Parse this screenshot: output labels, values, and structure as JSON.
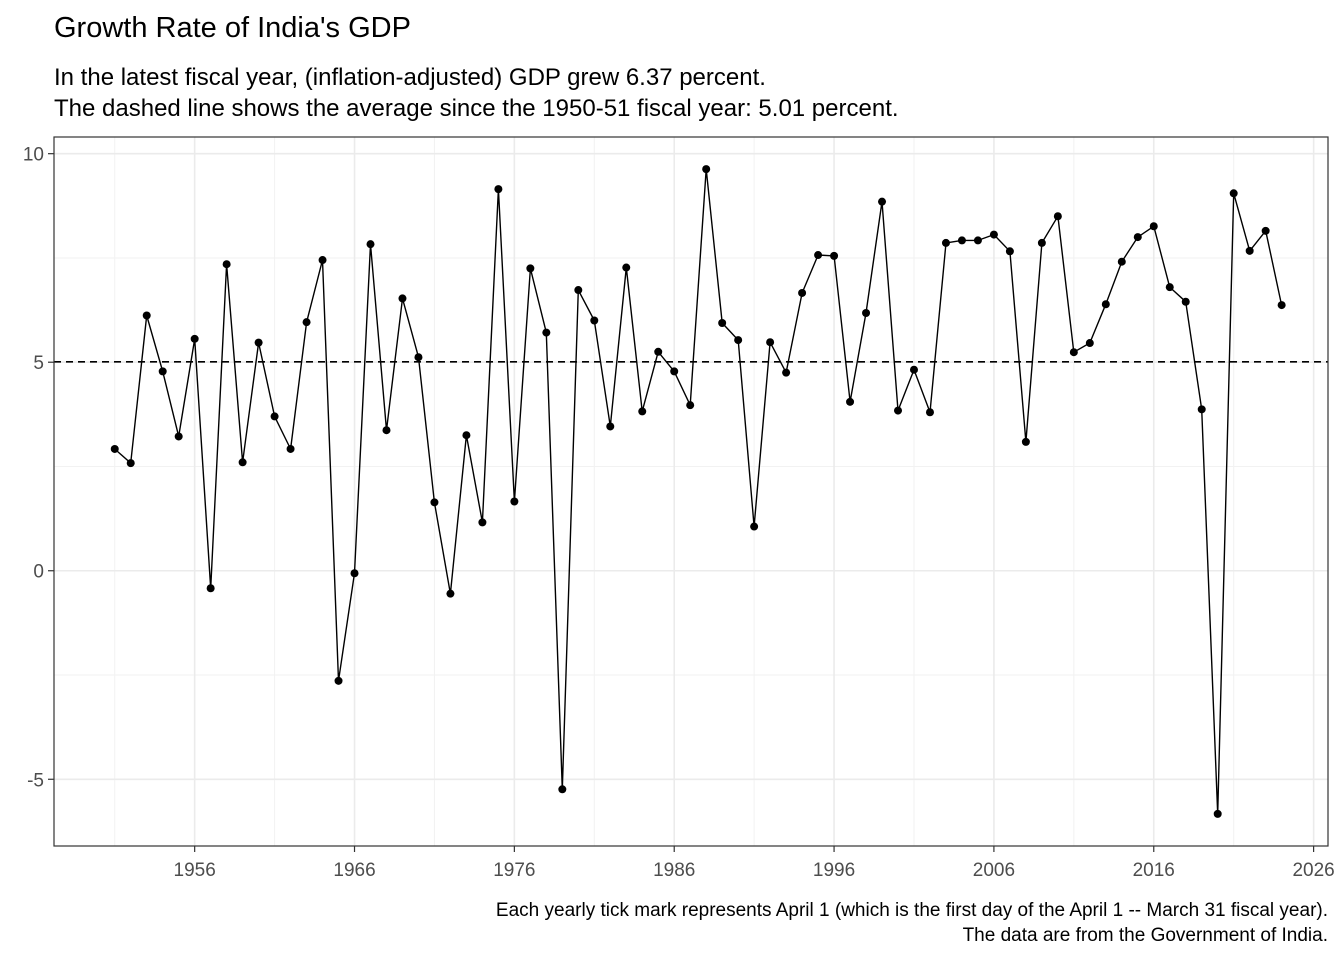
{
  "title": "Growth Rate of India's GDP",
  "subtitle": {
    "line1": "In the latest fiscal year, (inflation-adjusted) GDP grew 6.37 percent.",
    "line2": "The dashed line shows the average since the 1950-51 fiscal year: 5.01 percent."
  },
  "caption": {
    "line1": "Each yearly tick mark represents April 1 (which is the first day of the April 1 -- March 31 fiscal year).",
    "line2": "The data are from the Government of India."
  },
  "chart_data": {
    "type": "line",
    "title": "Growth Rate of India's GDP",
    "xlabel": "",
    "ylabel": "",
    "x_ticks": [
      "1956",
      "1966",
      "1976",
      "1986",
      "1996",
      "2006",
      "2016",
      "2026"
    ],
    "y_ticks": [
      "-5",
      "0",
      "5",
      "10"
    ],
    "xlim": [
      1947.2,
      2026.9
    ],
    "ylim": [
      -6.6,
      10.4
    ],
    "grid": true,
    "legend": "none",
    "average_line": {
      "value": 5.01,
      "style": "dashed"
    },
    "series": [
      {
        "color": "#000000",
        "points": [
          {
            "x": 1951,
            "y": 2.92
          },
          {
            "x": 1952,
            "y": 2.58
          },
          {
            "x": 1953,
            "y": 6.12
          },
          {
            "x": 1954,
            "y": 4.78
          },
          {
            "x": 1955,
            "y": 3.22
          },
          {
            "x": 1956,
            "y": 5.56
          },
          {
            "x": 1957,
            "y": -0.42
          },
          {
            "x": 1958,
            "y": 7.35
          },
          {
            "x": 1959,
            "y": 2.6
          },
          {
            "x": 1960,
            "y": 5.47
          },
          {
            "x": 1961,
            "y": 3.7
          },
          {
            "x": 1962,
            "y": 2.92
          },
          {
            "x": 1963,
            "y": 5.96
          },
          {
            "x": 1964,
            "y": 7.45
          },
          {
            "x": 1965,
            "y": -2.64
          },
          {
            "x": 1966,
            "y": -0.06
          },
          {
            "x": 1967,
            "y": 7.83
          },
          {
            "x": 1968,
            "y": 3.37
          },
          {
            "x": 1969,
            "y": 6.53
          },
          {
            "x": 1970,
            "y": 5.12
          },
          {
            "x": 1971,
            "y": 1.64
          },
          {
            "x": 1972,
            "y": -0.55
          },
          {
            "x": 1973,
            "y": 3.25
          },
          {
            "x": 1974,
            "y": 1.16
          },
          {
            "x": 1975,
            "y": 9.15
          },
          {
            "x": 1976,
            "y": 1.66
          },
          {
            "x": 1977,
            "y": 7.25
          },
          {
            "x": 1978,
            "y": 5.71
          },
          {
            "x": 1979,
            "y": -5.24
          },
          {
            "x": 1980,
            "y": 6.73
          },
          {
            "x": 1981,
            "y": 6.0
          },
          {
            "x": 1982,
            "y": 3.46
          },
          {
            "x": 1983,
            "y": 7.27
          },
          {
            "x": 1984,
            "y": 3.82
          },
          {
            "x": 1985,
            "y": 5.25
          },
          {
            "x": 1986,
            "y": 4.78
          },
          {
            "x": 1987,
            "y": 3.97
          },
          {
            "x": 1988,
            "y": 9.63
          },
          {
            "x": 1989,
            "y": 5.94
          },
          {
            "x": 1990,
            "y": 5.53
          },
          {
            "x": 1991,
            "y": 1.06
          },
          {
            "x": 1992,
            "y": 5.48
          },
          {
            "x": 1993,
            "y": 4.75
          },
          {
            "x": 1994,
            "y": 6.66
          },
          {
            "x": 1995,
            "y": 7.57
          },
          {
            "x": 1996,
            "y": 7.55
          },
          {
            "x": 1997,
            "y": 4.05
          },
          {
            "x": 1998,
            "y": 6.18
          },
          {
            "x": 1999,
            "y": 8.85
          },
          {
            "x": 2000,
            "y": 3.84
          },
          {
            "x": 2001,
            "y": 4.82
          },
          {
            "x": 2002,
            "y": 3.8
          },
          {
            "x": 2003,
            "y": 7.86
          },
          {
            "x": 2004,
            "y": 7.92
          },
          {
            "x": 2005,
            "y": 7.92
          },
          {
            "x": 2006,
            "y": 8.06
          },
          {
            "x": 2007,
            "y": 7.66
          },
          {
            "x": 2008,
            "y": 3.09
          },
          {
            "x": 2009,
            "y": 7.86
          },
          {
            "x": 2010,
            "y": 8.5
          },
          {
            "x": 2011,
            "y": 5.24
          },
          {
            "x": 2012,
            "y": 5.46
          },
          {
            "x": 2013,
            "y": 6.39
          },
          {
            "x": 2014,
            "y": 7.41
          },
          {
            "x": 2015,
            "y": 8.0
          },
          {
            "x": 2016,
            "y": 8.26
          },
          {
            "x": 2017,
            "y": 6.8
          },
          {
            "x": 2018,
            "y": 6.45
          },
          {
            "x": 2019,
            "y": 3.87
          },
          {
            "x": 2020,
            "y": -5.83
          },
          {
            "x": 2021,
            "y": 9.05
          },
          {
            "x": 2022,
            "y": 7.67
          },
          {
            "x": 2023,
            "y": 8.15
          },
          {
            "x": 2024,
            "y": 6.37
          }
        ]
      }
    ]
  }
}
